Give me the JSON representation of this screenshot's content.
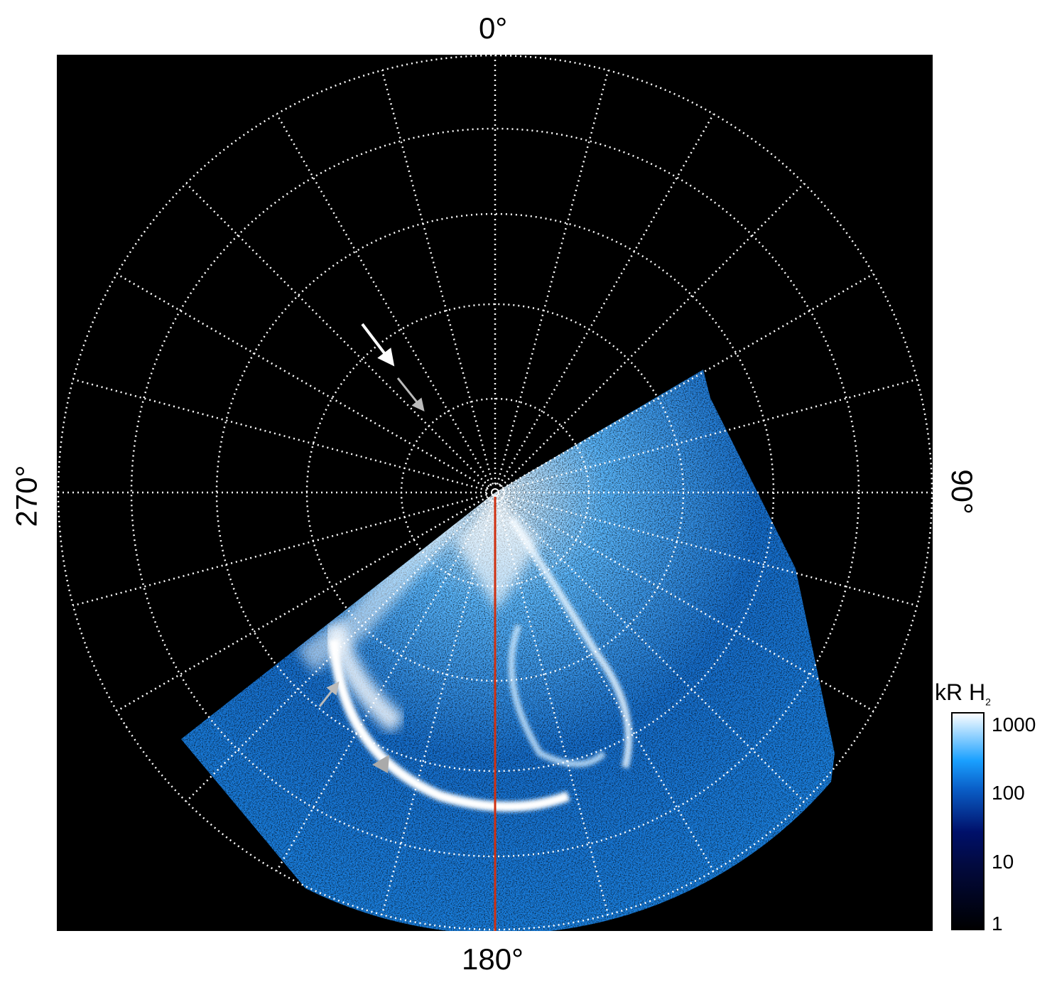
{
  "chart_data": {
    "type": "heatmap",
    "projection": "polar",
    "angle_labels": {
      "top": "0°",
      "right": "90°",
      "bottom": "180°",
      "left": "270°"
    },
    "grid": true,
    "grid_style": "dotted white",
    "meridian_step_deg": 15,
    "colorbar": {
      "title": "kR H",
      "title_subscript": "2",
      "scale": "log",
      "range": [
        1,
        1000
      ],
      "ticks": [
        "1000",
        "100",
        "10",
        "1"
      ],
      "colors": [
        "#000000",
        "#00106a",
        "#0a5fc8",
        "#1aa0ff",
        "#ffffff"
      ]
    },
    "annotations": [
      {
        "type": "arrow",
        "color": "#ffffff"
      },
      {
        "type": "arrow",
        "color": "#bbbbbb"
      },
      {
        "type": "arrow",
        "color": "#bbbbbb"
      },
      {
        "type": "arrow",
        "color": "#bbbbbb"
      }
    ],
    "reference_line": {
      "color": "#d03010",
      "angle_deg": 180
    }
  }
}
